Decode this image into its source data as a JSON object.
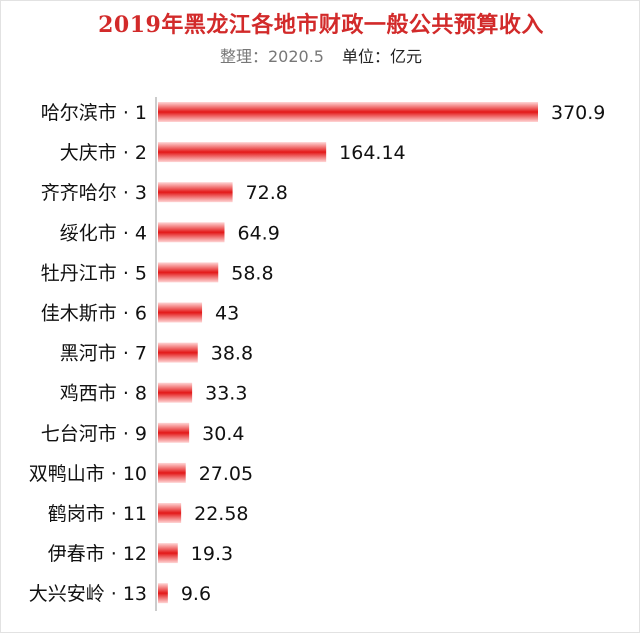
{
  "header": {
    "title": "2019年黑龙江各地市财政一般公共预算收入",
    "note": "整理：2020.5",
    "unit": "单位：亿元"
  },
  "colors": {
    "title": "#d22a2a",
    "bar_dark": "#e31818",
    "bar_light": "#ffd6d6"
  },
  "chart_data": {
    "type": "bar",
    "orientation": "horizontal",
    "title": "2019年黑龙江各地市财政一般公共预算收入",
    "subtitle": "整理：2020.5  单位：亿元",
    "categories": [
      "哈尔滨市 · 1",
      "大庆市 · 2",
      "齐齐哈尔 · 3",
      "绥化市 · 4",
      "牡丹江市 · 5",
      "佳木斯市 · 6",
      "黑河市 · 7",
      "鸡西市 · 8",
      "七台河市 · 9",
      "双鸭山市 · 10",
      "鹤岗市 · 11",
      "伊春市 · 12",
      "大兴安岭 · 13"
    ],
    "values": [
      370.9,
      164.14,
      72.8,
      64.9,
      58.8,
      43,
      38.8,
      33.3,
      30.4,
      27.05,
      22.58,
      19.3,
      9.6
    ],
    "value_labels": [
      "370.9",
      "164.14",
      "72.8",
      "64.9",
      "58.8",
      "43",
      "38.8",
      "33.3",
      "30.4",
      "27.05",
      "22.58",
      "19.3",
      "9.6"
    ],
    "xlim": [
      0,
      370.9
    ],
    "grid": false,
    "legend": "none"
  }
}
